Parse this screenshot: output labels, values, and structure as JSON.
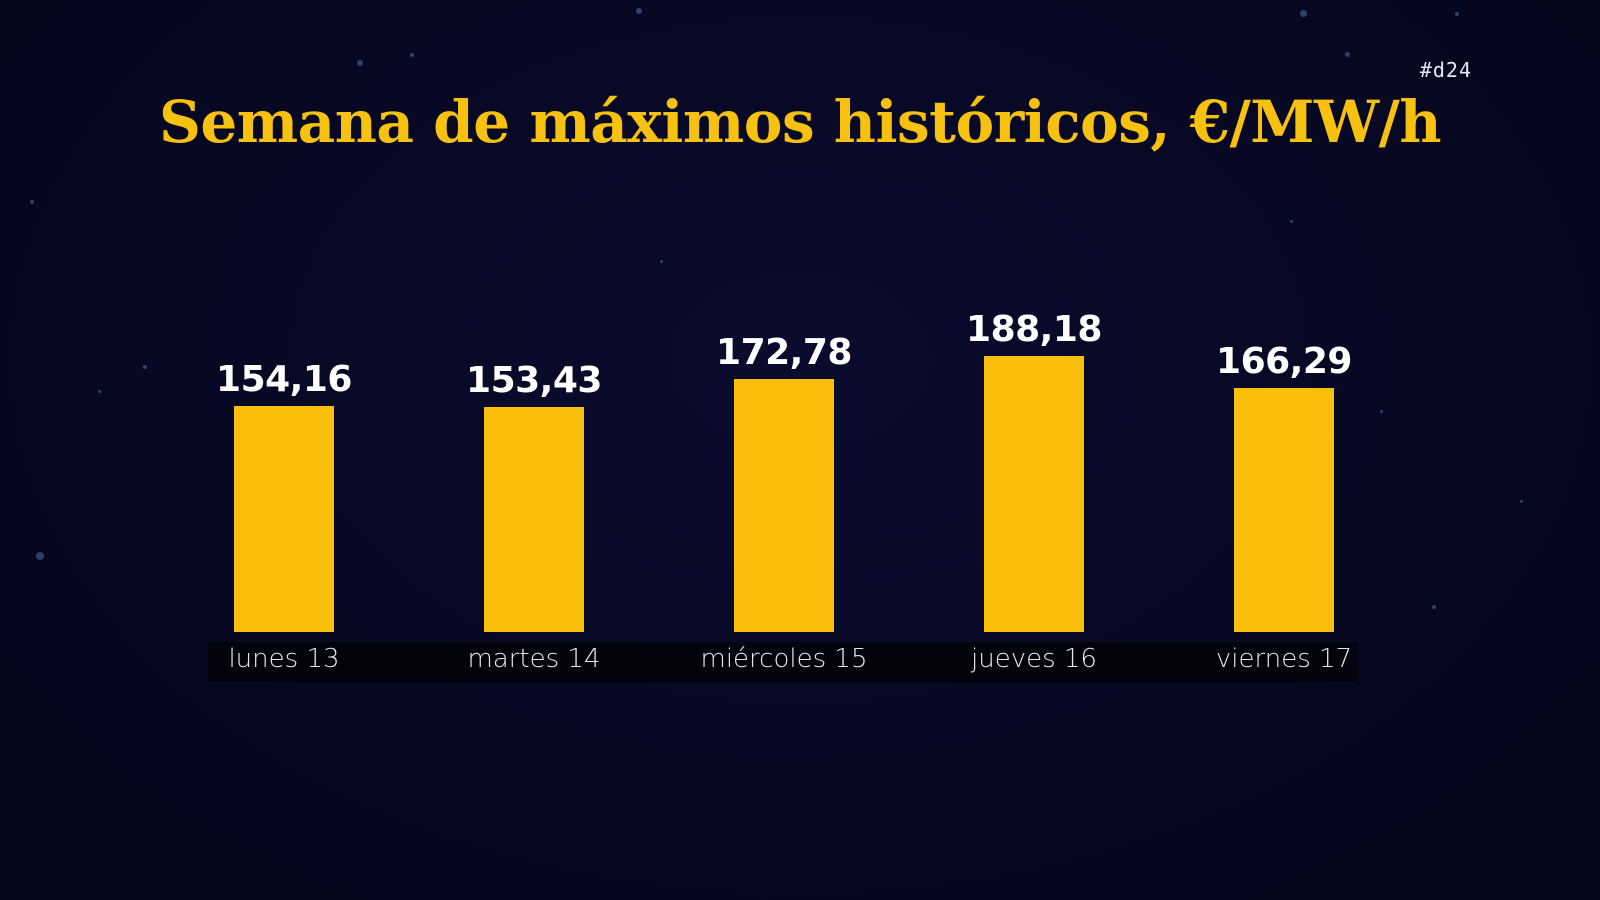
{
  "header": {
    "title": "Semana de máximos históricos, €/MW/h",
    "tag": "#d24"
  },
  "colors": {
    "background": "#070822",
    "bar": "#f9bf0c",
    "title": "#f7c10f",
    "value_text": "#ffffff",
    "label_strip": "#02030c"
  },
  "chart_data": {
    "type": "bar",
    "title": "Semana de máximos históricos, €/MW/h",
    "xlabel": "",
    "ylabel": "€/MW/h",
    "categories": [
      "lunes 13",
      "martes 14",
      "miércoles 15",
      "jueves 16",
      "viernes 17"
    ],
    "values": [
      154.16,
      153.43,
      172.78,
      188.18,
      166.29
    ],
    "value_labels": [
      "154,16",
      "153,43",
      "172,78",
      "188,18",
      "166,29"
    ],
    "grid": false,
    "legend": null,
    "ylim": [
      0,
      200
    ]
  }
}
